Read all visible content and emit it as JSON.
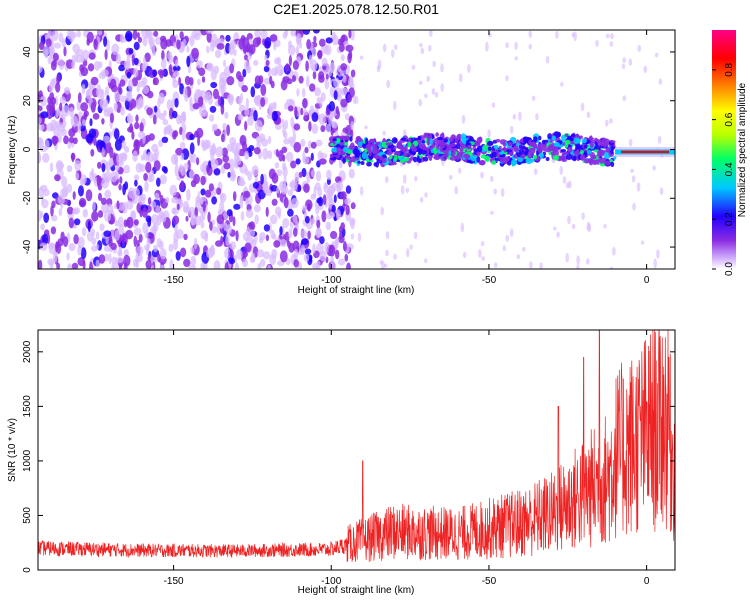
{
  "title": "C2E1.2025.078.12.50.R01",
  "colors": {
    "trace": "#ee2222",
    "noise": "#8a2be2",
    "background": "#ffffff",
    "colormap": [
      "#ffffff",
      "#d7b8ff",
      "#8a2be2",
      "#2200ff",
      "#00c8ff",
      "#00ff66",
      "#b8ff00",
      "#ffff00",
      "#ff8800",
      "#ff0000",
      "#ff0088"
    ]
  },
  "chart_data": [
    {
      "type": "heatmap",
      "xlabel": "Height of straight line (km)",
      "ylabel": "Frequency (Hz)",
      "xlim": [
        -193,
        9
      ],
      "ylim": [
        -49,
        49
      ],
      "xticks": [
        -150,
        -100,
        -50,
        0
      ],
      "yticks": [
        -40,
        -20,
        0,
        20,
        40
      ],
      "grid": false,
      "colorbar": {
        "label": "Normalized spectral amplitude",
        "range": [
          0.0,
          0.96
        ],
        "ticks": [
          0.0,
          0.2,
          0.4,
          0.6,
          0.8
        ]
      },
      "features": {
        "noise_region_x": [
          -193,
          -93
        ],
        "signal_band_x": [
          -100,
          -10
        ],
        "signal_band_frequency": [
          -5,
          5
        ],
        "carrier_x": [
          -10,
          9
        ],
        "carrier_frequency": -1
      }
    },
    {
      "type": "line",
      "xlabel": "Height of straight line (km)",
      "ylabel": "SNR (10 * v/v)",
      "xlim": [
        -193,
        9
      ],
      "ylim": [
        0,
        2200
      ],
      "xticks": [
        -150,
        -100,
        -50,
        0
      ],
      "yticks": [
        0,
        500,
        1000,
        1500,
        2000
      ],
      "grid": false,
      "trend": [
        {
          "x": -193,
          "y": 200
        },
        {
          "x": -160,
          "y": 180
        },
        {
          "x": -130,
          "y": 175
        },
        {
          "x": -100,
          "y": 190
        },
        {
          "x": -92,
          "y": 260
        },
        {
          "x": -80,
          "y": 350
        },
        {
          "x": -60,
          "y": 330
        },
        {
          "x": -50,
          "y": 380
        },
        {
          "x": -40,
          "y": 430
        },
        {
          "x": -30,
          "y": 520
        },
        {
          "x": -20,
          "y": 700
        },
        {
          "x": -12,
          "y": 850
        },
        {
          "x": -10,
          "y": 1050
        },
        {
          "x": -5,
          "y": 1150
        },
        {
          "x": 0,
          "y": 1250
        },
        {
          "x": 6,
          "y": 1400
        },
        {
          "x": 9,
          "y": 900
        }
      ],
      "peaks": [
        {
          "x": -15,
          "y": 2200
        },
        {
          "x": -20,
          "y": 1950
        },
        {
          "x": -28,
          "y": 1500
        },
        {
          "x": -90,
          "y": 1000
        },
        {
          "x": 7,
          "y": 1950
        }
      ]
    }
  ]
}
